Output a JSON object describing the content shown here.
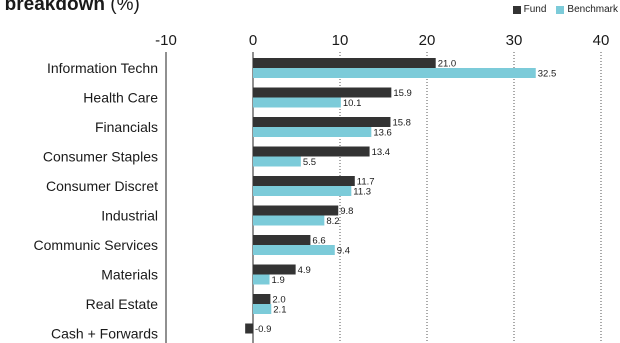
{
  "title": "r breakdown",
  "title_suffix": "(%)",
  "colors": {
    "fund": "#333333",
    "benchmark": "#7ccbd9"
  },
  "chart_data": {
    "type": "bar",
    "orientation": "horizontal",
    "categories": [
      "Information Techn",
      "Health Care",
      "Financials",
      "Consumer Staples",
      "Consumer Discret",
      "Industrial",
      "Communic Services",
      "Materials",
      "Real Estate",
      "Cash + Forwards"
    ],
    "series": [
      {
        "name": "Fund",
        "values": [
          21.0,
          15.9,
          15.8,
          13.4,
          11.7,
          9.8,
          6.6,
          4.9,
          2.0,
          -0.9
        ]
      },
      {
        "name": "Benchmark",
        "values": [
          32.5,
          10.1,
          13.6,
          5.5,
          11.3,
          8.2,
          9.4,
          1.9,
          2.1,
          null
        ]
      }
    ],
    "value_labels": [
      [
        "21.0",
        "15.9",
        "15.8",
        "13.4",
        "11.7",
        "9.8",
        "6.6",
        "4.9",
        "2.0",
        "-0.9"
      ],
      [
        "32.5",
        "10.1",
        "13.6",
        "5.5",
        "11.3",
        "8.2",
        "9.4",
        "1.9",
        "2.1",
        ""
      ]
    ],
    "x_ticks": [
      -10,
      0,
      10,
      20,
      30,
      40
    ],
    "xlim": [
      -10,
      40
    ],
    "grid": "dotted vertical at 10, 20, 30, 40",
    "legend_position": "top-right",
    "title": "",
    "xlabel": "",
    "ylabel": ""
  }
}
